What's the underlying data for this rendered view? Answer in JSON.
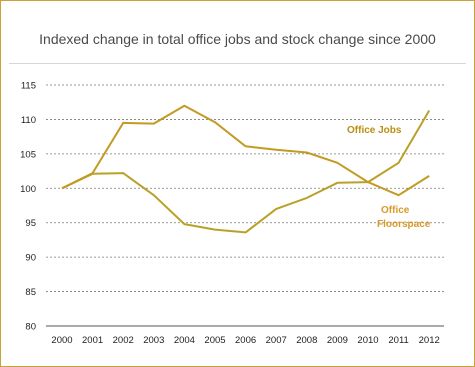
{
  "chart_data": {
    "type": "line",
    "title": "Indexed change in total office jobs and stock change since 2000",
    "x": [
      "2000",
      "2001",
      "2002",
      "2003",
      "2004",
      "2005",
      "2006",
      "2007",
      "2008",
      "2009",
      "2010",
      "2011",
      "2012"
    ],
    "ylim": [
      80,
      115
    ],
    "yticks": [
      80,
      85,
      90,
      95,
      100,
      105,
      110,
      115
    ],
    "grid": true,
    "series": [
      {
        "name": "Office Jobs",
        "color": "#b9a128",
        "label_color": "#b98f12",
        "values": [
          100,
          102.1,
          102.2,
          99.0,
          94.8,
          94.0,
          93.6,
          97.0,
          98.6,
          100.8,
          100.9,
          103.7,
          111.3
        ]
      },
      {
        "name": "Office Floorspace",
        "color": "#c39a23",
        "label_color": "#d79b2a",
        "values": [
          100,
          102.2,
          109.5,
          109.4,
          112.0,
          109.6,
          106.1,
          105.6,
          105.2,
          103.7,
          100.9,
          99.0,
          101.8
        ]
      }
    ],
    "label_lines": {
      "office_floorspace": [
        "Office",
        "Floorspace"
      ]
    }
  }
}
